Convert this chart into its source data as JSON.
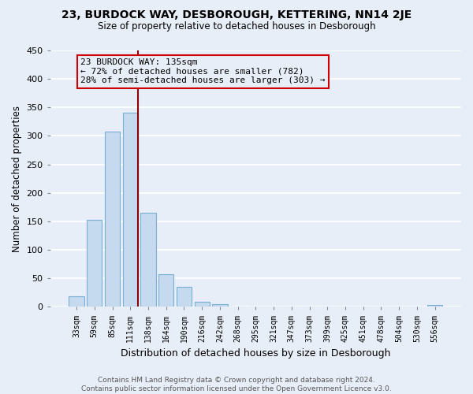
{
  "title": "23, BURDOCK WAY, DESBOROUGH, KETTERING, NN14 2JE",
  "subtitle": "Size of property relative to detached houses in Desborough",
  "xlabel": "Distribution of detached houses by size in Desborough",
  "ylabel": "Number of detached properties",
  "bar_labels": [
    "33sqm",
    "59sqm",
    "85sqm",
    "111sqm",
    "138sqm",
    "164sqm",
    "190sqm",
    "216sqm",
    "242sqm",
    "268sqm",
    "295sqm",
    "321sqm",
    "347sqm",
    "373sqm",
    "399sqm",
    "425sqm",
    "451sqm",
    "478sqm",
    "504sqm",
    "530sqm",
    "556sqm"
  ],
  "bar_values": [
    18,
    152,
    307,
    341,
    165,
    57,
    35,
    9,
    4,
    1,
    1,
    0,
    0,
    0,
    0,
    0,
    0,
    0,
    0,
    0,
    3
  ],
  "bar_color": "#c5d9ef",
  "bar_edge_color": "#7aafd4",
  "annotation_title": "23 BURDOCK WAY: 135sqm",
  "annotation_line1": "← 72% of detached houses are smaller (782)",
  "annotation_line2": "28% of semi-detached houses are larger (303) →",
  "ylim": [
    0,
    450
  ],
  "yticks": [
    0,
    50,
    100,
    150,
    200,
    250,
    300,
    350,
    400,
    450
  ],
  "footer_line1": "Contains HM Land Registry data © Crown copyright and database right 2024.",
  "footer_line2": "Contains public sector information licensed under the Open Government Licence v3.0.",
  "bg_color": "#e8eef8",
  "grid_color": "#ffffff"
}
